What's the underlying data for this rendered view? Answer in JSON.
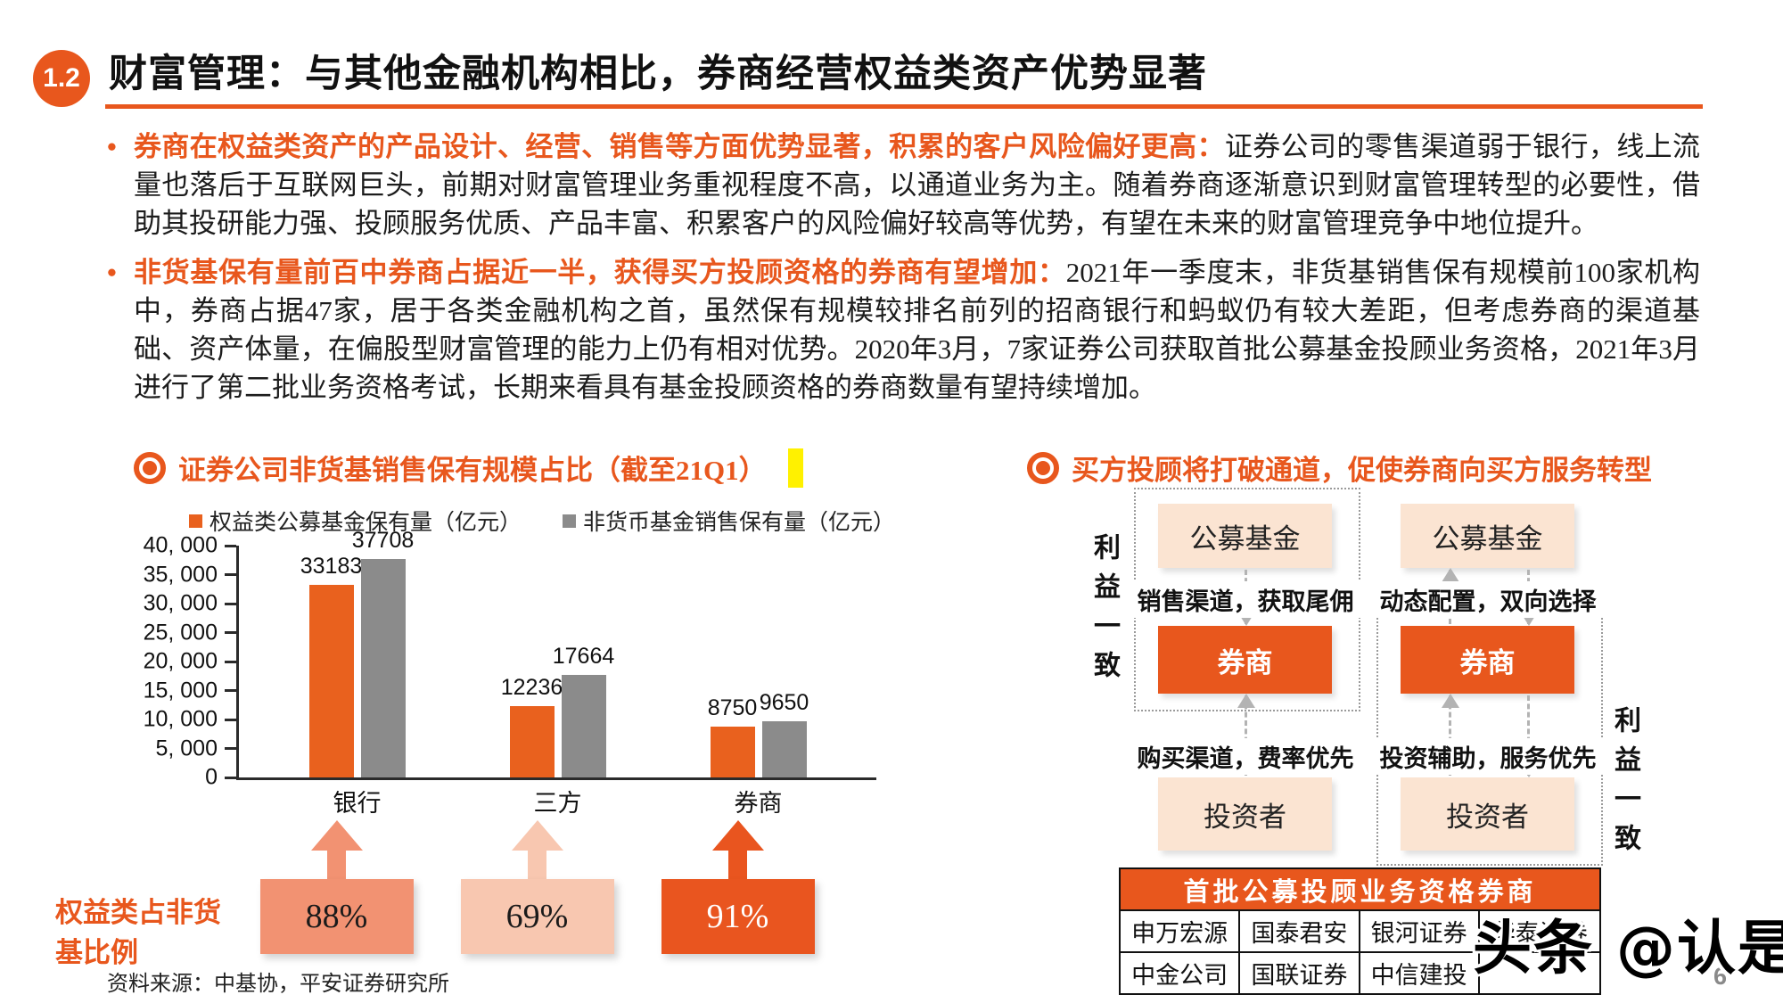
{
  "colors": {
    "accent": "#E8571D",
    "bar-orange": "#E9611E",
    "bar-gray": "#8B8B8B",
    "peach": "#FBE4D2",
    "highlight-yellow": "#FFF100",
    "arrow-gray": "#B3B3B3"
  },
  "page": {
    "badge": "1.2",
    "title": "财富管理：与其他金融机构相比，券商经营权益类资产优势显著",
    "bullet_marker": "•",
    "source": "资料来源：中基协，平安证券研究所",
    "watermark": "头条 @认是",
    "page_number": "6"
  },
  "bullets": [
    {
      "lead": "券商在权益类资产的产品设计、经营、销售等方面优势显著，积累的客户风险偏好更高：",
      "body": "证券公司的零售渠道弱于银行，线上流量也落后于互联网巨头，前期对财富管理业务重视程度不高，以通道业务为主。随着券商逐渐意识到财富管理转型的必要性，借助其投研能力强、投顾服务优质、产品丰富、积累客户的风险偏好较高等优势，有望在未来的财富管理竞争中地位提升。"
    },
    {
      "lead": "非货基保有量前百中券商占据近一半，获得买方投顾资格的券商有望增加：",
      "body": "2021年一季度末，非货基销售保有规模前100家机构中，券商占据47家，居于各类金融机构之首，虽然保有规模较排名前列的招商银行和蚂蚁仍有较大差距，但考虑券商的渠道基础、资产体量，在偏股型财富管理的能力上仍有相对优势。2020年3月，7家证券公司获取首批公募基金投顾业务资格，2021年3月进行了第二批业务资格考试，长期来看具有基金投顾资格的券商数量有望持续增加。"
    }
  ],
  "left_section": {
    "title": "证券公司非货基销售保有规模占比（截至21Q1）",
    "ratio_label": "权益类占非货基比例",
    "ratios": [
      {
        "value": "88%",
        "fill": "#F29272",
        "text": "#1a1a1a"
      },
      {
        "value": "69%",
        "fill": "#F8C7B0",
        "text": "#1a1a1a"
      },
      {
        "value": "91%",
        "fill": "#E9551F",
        "text": "#ffffff"
      }
    ]
  },
  "chart_data": {
    "type": "bar",
    "title": "证券公司非货基销售保有规模占比（截至21Q1）",
    "categories": [
      "银行",
      "三方",
      "券商"
    ],
    "series": [
      {
        "name": "权益类公募基金保有量（亿元）",
        "color": "#E9611E",
        "values": [
          33183,
          12236,
          8750
        ]
      },
      {
        "name": "非货币基金销售保有量（亿元）",
        "color": "#8B8B8B",
        "values": [
          37708,
          17664,
          9650
        ]
      }
    ],
    "ylim": [
      0,
      40000
    ],
    "ytick_interval": 5000,
    "ytick_labels": [
      "40, 000",
      "35, 000",
      "30, 000",
      "25, 000",
      "20, 000",
      "15, 000",
      "10, 000",
      "5, 000",
      "0"
    ],
    "legend_position": "top",
    "grid": false
  },
  "right_section": {
    "title": "买方投顾将打破通道，促使券商向买方服务转型",
    "left_flow": {
      "side_label": "利益一致",
      "top_box": "公募基金",
      "mid_box": "券商",
      "bottom_box": "投资者",
      "top_edge_label": "销售渠道，获取尾佣",
      "bottom_edge_label": "购买渠道，费率优先"
    },
    "right_flow": {
      "side_label": "利益一致",
      "top_box": "公募基金",
      "mid_box": "券商",
      "bottom_box": "投资者",
      "top_edge_label": "动态配置，双向选择",
      "bottom_edge_label": "投资辅助，服务优先"
    },
    "table": {
      "header": "首批公募投顾业务资格券商",
      "rows": [
        [
          "申万宏源",
          "国泰君安",
          "银河证券",
          "华泰证券"
        ],
        [
          "中金公司",
          "国联证券",
          "中信建投",
          ""
        ]
      ]
    }
  }
}
